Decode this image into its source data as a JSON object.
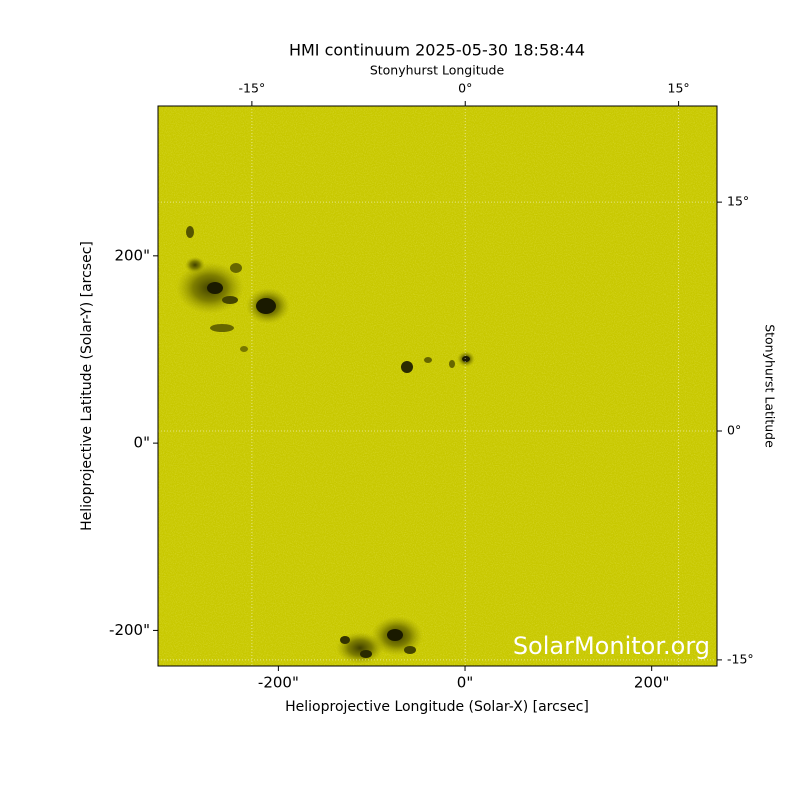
{
  "chart_data": {
    "type": "image",
    "title": "HMI continuum 2025-05-30 18:58:44",
    "xlabel": "Helioprojective Longitude (Solar-X) [arcsec]",
    "ylabel": "Helioprojective Latitude (Solar-Y) [arcsec]",
    "x2label": "Stonyhurst Longitude",
    "y2label": "Stonyhurst Latitude",
    "watermark": "SolarMonitor.org",
    "color": "#c8c800",
    "grid": true,
    "xlim": [
      -329,
      270
    ],
    "ylim": [
      -238,
      360
    ],
    "xticks": [
      {
        "value": -200,
        "label": "-200\""
      },
      {
        "value": 0,
        "label": "0\""
      },
      {
        "value": 200,
        "label": "200\""
      }
    ],
    "yticks": [
      {
        "value": -200,
        "label": "-200\""
      },
      {
        "value": 0,
        "label": "0\""
      },
      {
        "value": 200,
        "label": "200\""
      }
    ],
    "x2lim": [
      -21.6,
      17.7
    ],
    "x2ticks": [
      {
        "value": -15,
        "label": "-15°"
      },
      {
        "value": 0,
        "label": "0°"
      },
      {
        "value": 15,
        "label": "15°"
      }
    ],
    "y2lim": [
      -15.4,
      21.3
    ],
    "y2ticks": [
      {
        "value": 15,
        "label": "15°"
      },
      {
        "value": 0,
        "label": "0°"
      },
      {
        "value": -15,
        "label": "-15°"
      }
    ]
  }
}
